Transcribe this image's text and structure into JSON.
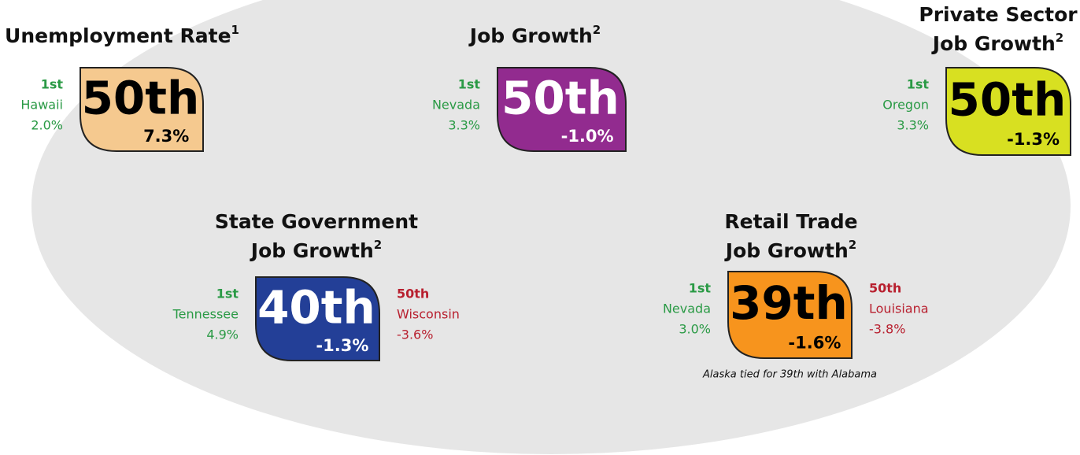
{
  "panels": [
    {
      "title_lines": [
        "Unemployment Rate"
      ],
      "footnote": "1",
      "rank": "50th",
      "value": "7.3%",
      "first": {
        "rank": "1st",
        "state": "Hawaii",
        "value": "2.0%"
      }
    },
    {
      "title_lines": [
        "Job Growth"
      ],
      "footnote": "2",
      "rank": "50th",
      "value": "-1.0%",
      "first": {
        "rank": "1st",
        "state": "Nevada",
        "value": "3.3%"
      }
    },
    {
      "title_lines": [
        "Private Sector",
        "Job Growth"
      ],
      "footnote": "2",
      "rank": "50th",
      "value": "-1.3%",
      "first": {
        "rank": "1st",
        "state": "Oregon",
        "value": "3.3%"
      }
    },
    {
      "title_lines": [
        "State Government",
        "Job Growth"
      ],
      "footnote": "2",
      "rank": "40th",
      "value": "-1.3%",
      "first": {
        "rank": "1st",
        "state": "Tennessee",
        "value": "4.9%"
      },
      "last": {
        "rank": "50th",
        "state": "Wisconsin",
        "value": "-3.6%"
      }
    },
    {
      "title_lines": [
        "Retail Trade",
        "Job Growth"
      ],
      "footnote": "2",
      "rank": "39th",
      "value": "-1.6%",
      "first": {
        "rank": "1st",
        "state": "Nevada",
        "value": "3.0%"
      },
      "last": {
        "rank": "50th",
        "state": "Louisiana",
        "value": "-3.8%"
      },
      "note": "Alaska tied for 39th with Alabama"
    }
  ]
}
